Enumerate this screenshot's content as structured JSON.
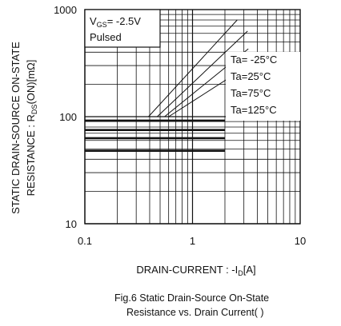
{
  "chart_data": {
    "type": "line",
    "scale": "log-log",
    "xlabel_main": "DRAIN-CURRENT : -I",
    "xlabel_sub": "D",
    "xlabel_unit": "[A]",
    "ylabel_line1": "STATIC DRAIN-SOURCE ON-STATE",
    "ylabel_line2_pre": "RESISTANCE : R",
    "ylabel_line2_sub": "DS",
    "ylabel_line2_post": "(ON)[mΩ]",
    "xlim": [
      0.1,
      10
    ],
    "ylim": [
      10,
      1000
    ],
    "x_ticks": [
      {
        "value": 0.1,
        "label": "0.1"
      },
      {
        "value": 1,
        "label": "1"
      },
      {
        "value": 10,
        "label": "10"
      }
    ],
    "y_ticks": [
      {
        "value": 1000,
        "label": "1000"
      },
      {
        "value": 100,
        "label": "100"
      },
      {
        "value": 10,
        "label": "10"
      }
    ],
    "grid": true,
    "conditions": {
      "line1_pre": "V",
      "line1_sub": "GS",
      "line1_post": "= -2.5V",
      "line2": "Pulsed"
    },
    "series": [
      {
        "name": "Ta= -25°C",
        "points": [
          [
            0.1,
            48
          ],
          [
            2.0,
            48
          ]
        ]
      },
      {
        "name": "Ta=25°C",
        "points": [
          [
            0.1,
            63
          ],
          [
            2.0,
            63
          ]
        ]
      },
      {
        "name": "Ta=75°C",
        "points": [
          [
            0.1,
            75
          ],
          [
            2.0,
            75
          ]
        ]
      },
      {
        "name": "Ta=125°C",
        "points": [
          [
            0.1,
            92
          ],
          [
            2.0,
            92
          ]
        ]
      }
    ],
    "limit_lines": [
      {
        "label": "Ta= -25°C",
        "points": [
          [
            0.39,
            100
          ],
          [
            2.6,
            800
          ]
        ]
      },
      {
        "label": "Ta=25°C",
        "points": [
          [
            0.47,
            100
          ],
          [
            3.25,
            630
          ]
        ]
      },
      {
        "label": "Ta=75°C",
        "points": [
          [
            0.55,
            100
          ],
          [
            3.3,
            430
          ]
        ]
      },
      {
        "label": "Ta=125°C",
        "points": [
          [
            0.6,
            100
          ],
          [
            3.05,
            285
          ]
        ]
      }
    ]
  },
  "caption": {
    "line1": "Fig.6  Static Drain-Source On-State",
    "line2": "Resistance vs. Drain Current(    )"
  }
}
